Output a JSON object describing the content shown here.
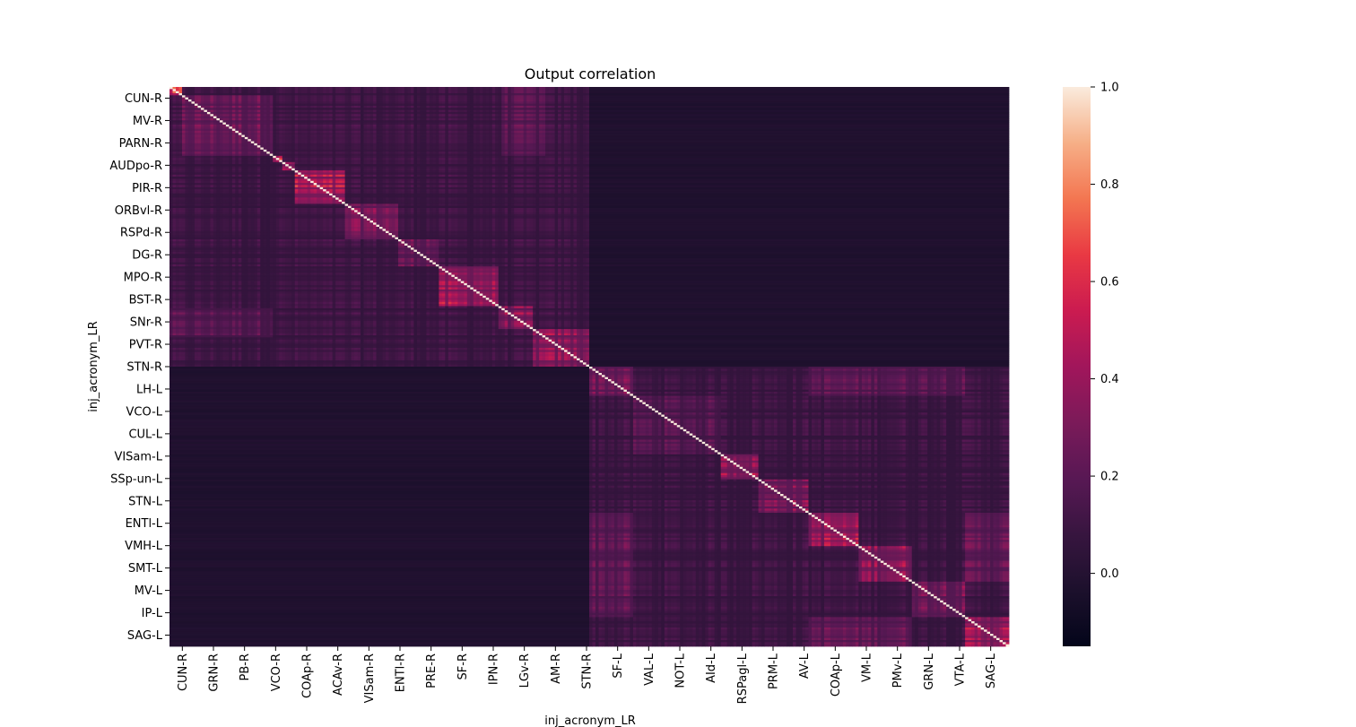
{
  "chart_data": {
    "type": "heatmap",
    "title": "Output correlation",
    "xlabel": "inj_acronym_LR",
    "ylabel": "inj_acronym_LR",
    "row_tick_labels": [
      "CUN-R",
      "MV-R",
      "PARN-R",
      "AUDpo-R",
      "PIR-R",
      "ORBvl-R",
      "RSPd-R",
      "DG-R",
      "MPO-R",
      "BST-R",
      "SNr-R",
      "PVT-R",
      "STN-R",
      "LH-L",
      "VCO-L",
      "CUL-L",
      "VISam-L",
      "SSp-un-L",
      "STN-L",
      "ENTl-L",
      "VMH-L",
      "SMT-L",
      "MV-L",
      "IP-L",
      "SAG-L"
    ],
    "col_tick_labels": [
      "CUN-R",
      "GRN-R",
      "PB-R",
      "VCO-R",
      "COAp-R",
      "ACAv-R",
      "VISam-R",
      "ENTl-R",
      "PRE-R",
      "SF-R",
      "IPN-R",
      "LGv-R",
      "AM-R",
      "STN-R",
      "SF-L",
      "VAL-L",
      "NOT-L",
      "AId-L",
      "RSPagl-L",
      "PRM-L",
      "AV-L",
      "COAp-L",
      "VM-L",
      "PMv-L",
      "GRN-L",
      "VTA-L",
      "SAG-L"
    ],
    "colorbar": {
      "vmin": -0.15,
      "vmax": 1.0,
      "ticks": [
        "0.0",
        "0.2",
        "0.4",
        "0.6",
        "0.8",
        "1.0"
      ],
      "colormap": "rocket"
    },
    "matrix_size": 268,
    "hemisphere_split_index": 134,
    "diagonal_value": 1.0,
    "cross_hemisphere_correlation": -0.02,
    "blocks": [
      {
        "start": 0,
        "end": 4,
        "value": 0.8
      },
      {
        "start": 4,
        "end": 33,
        "value": 0.35
      },
      {
        "start": 33,
        "end": 36,
        "value": 0.7
      },
      {
        "start": 36,
        "end": 40,
        "value": 0.6
      },
      {
        "start": 40,
        "end": 56,
        "value": 0.6
      },
      {
        "start": 56,
        "end": 73,
        "value": 0.45
      },
      {
        "start": 73,
        "end": 86,
        "value": 0.35
      },
      {
        "start": 86,
        "end": 105,
        "value": 0.55
      },
      {
        "start": 105,
        "end": 116,
        "value": 0.45
      },
      {
        "start": 116,
        "end": 134,
        "value": 0.5
      },
      {
        "start": 134,
        "end": 148,
        "value": 0.4
      },
      {
        "start": 148,
        "end": 176,
        "value": 0.25
      },
      {
        "start": 176,
        "end": 188,
        "value": 0.55
      },
      {
        "start": 188,
        "end": 204,
        "value": 0.45
      },
      {
        "start": 204,
        "end": 220,
        "value": 0.55
      },
      {
        "start": 220,
        "end": 237,
        "value": 0.5
      },
      {
        "start": 237,
        "end": 254,
        "value": 0.4
      },
      {
        "start": 254,
        "end": 268,
        "value": 0.55
      }
    ],
    "off_diagonal_links": [
      {
        "rows": [
          0,
          33
        ],
        "cols": [
          106,
          120
        ],
        "value": 0.25
      },
      {
        "rows": [
          134,
          148
        ],
        "cols": [
          220,
          237
        ],
        "value": 0.3
      },
      {
        "rows": [
          204,
          254
        ],
        "cols": [
          134,
          148
        ],
        "value": 0.28
      },
      {
        "rows": [
          204,
          237
        ],
        "cols": [
          254,
          268
        ],
        "value": 0.3
      }
    ]
  }
}
